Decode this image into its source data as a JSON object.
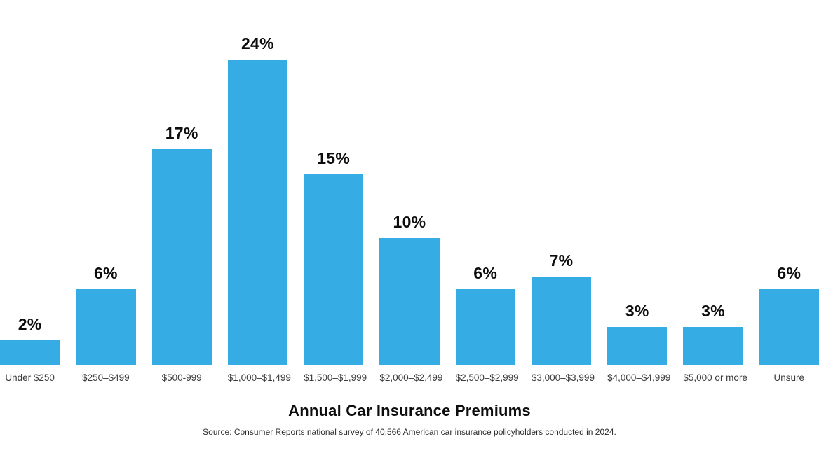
{
  "chart_data": {
    "type": "bar",
    "title": "Annual Car Insurance Premiums",
    "source": "Source: Consumer Reports national survey of 40,566 American car insurance policyholders conducted in 2024.",
    "categories": [
      "Under $250",
      "$250–$499",
      "$500-999",
      "$1,000–$1,499",
      "$1,500–$1,999",
      "$2,000–$2,499",
      "$2,500–$2,999",
      "$3,000–$3,999",
      "$4,000–$4,999",
      "$5,000 or more",
      "Unsure"
    ],
    "values": [
      2,
      6,
      17,
      24,
      15,
      10,
      6,
      7,
      3,
      3,
      6
    ],
    "value_labels": [
      "2%",
      "6%",
      "17%",
      "24%",
      "15%",
      "10%",
      "6%",
      "7%",
      "3%",
      "3%",
      "6%"
    ],
    "bar_color": "#35ADE4",
    "value_label_color": "#0d0d0d",
    "category_label_color": "#3b3b3b",
    "xlabel": "",
    "ylabel": "",
    "ylim": [
      0,
      24
    ],
    "grid": false,
    "legend": false,
    "axis_lines": false
  }
}
